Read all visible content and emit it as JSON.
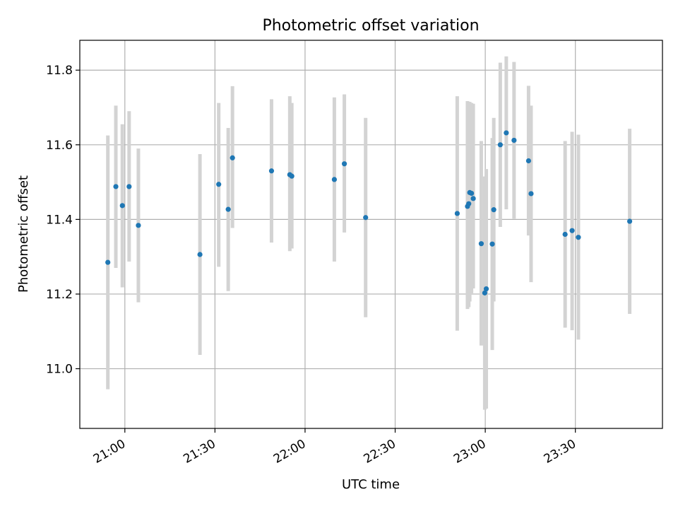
{
  "chart_data": {
    "type": "scatter",
    "title": "Photometric offset variation",
    "xlabel": "UTC time",
    "ylabel": "Photometric offset",
    "x_unit": "UTC time of day (HH:MM)",
    "xlim": [
      "20:45",
      "23:59"
    ],
    "ylim": [
      10.84,
      11.88
    ],
    "x_ticks": [
      "21:00",
      "21:30",
      "22:00",
      "22:30",
      "23:00",
      "23:30"
    ],
    "y_ticks": [
      11.0,
      11.2,
      11.4,
      11.6,
      11.8
    ],
    "grid": true,
    "legend": "none",
    "colors": {
      "point": "#1f77b4",
      "errorbar": "#d3d3d3",
      "grid": "#b0b0b0"
    },
    "points": [
      {
        "time": "20:54:20",
        "y": 11.285,
        "lo": 10.945,
        "hi": 11.625
      },
      {
        "time": "20:57:00",
        "y": 11.488,
        "lo": 11.27,
        "hi": 11.705
      },
      {
        "time": "20:59:10",
        "y": 11.437,
        "lo": 11.218,
        "hi": 11.655
      },
      {
        "time": "21:01:25",
        "y": 11.488,
        "lo": 11.287,
        "hi": 11.69
      },
      {
        "time": "21:04:30",
        "y": 11.384,
        "lo": 11.178,
        "hi": 11.59
      },
      {
        "time": "21:25:00",
        "y": 11.306,
        "lo": 11.037,
        "hi": 11.575
      },
      {
        "time": "21:31:15",
        "y": 11.494,
        "lo": 11.273,
        "hi": 11.712
      },
      {
        "time": "21:34:25",
        "y": 11.427,
        "lo": 11.208,
        "hi": 11.645
      },
      {
        "time": "21:35:50",
        "y": 11.565,
        "lo": 11.377,
        "hi": 11.757
      },
      {
        "time": "21:48:50",
        "y": 11.53,
        "lo": 11.338,
        "hi": 11.722
      },
      {
        "time": "21:54:55",
        "y": 11.52,
        "lo": 11.315,
        "hi": 11.73
      },
      {
        "time": "21:55:35",
        "y": 11.516,
        "lo": 11.322,
        "hi": 11.712
      },
      {
        "time": "22:09:45",
        "y": 11.507,
        "lo": 11.287,
        "hi": 11.727
      },
      {
        "time": "22:13:05",
        "y": 11.549,
        "lo": 11.365,
        "hi": 11.735
      },
      {
        "time": "22:20:10",
        "y": 11.405,
        "lo": 11.138,
        "hi": 11.672
      },
      {
        "time": "22:50:40",
        "y": 11.416,
        "lo": 11.102,
        "hi": 11.73
      },
      {
        "time": "22:54:05",
        "y": 11.435,
        "lo": 11.16,
        "hi": 11.717
      },
      {
        "time": "22:54:30",
        "y": 11.442,
        "lo": 11.165,
        "hi": 11.715
      },
      {
        "time": "22:54:50",
        "y": 11.472,
        "lo": 11.18,
        "hi": 11.715
      },
      {
        "time": "22:55:25",
        "y": 11.47,
        "lo": 11.198,
        "hi": 11.712
      },
      {
        "time": "22:56:00",
        "y": 11.456,
        "lo": 11.215,
        "hi": 11.71
      },
      {
        "time": "22:58:40",
        "y": 11.335,
        "lo": 11.062,
        "hi": 11.61
      },
      {
        "time": "22:59:50",
        "y": 11.203,
        "lo": 10.89,
        "hi": 11.515
      },
      {
        "time": "23:00:20",
        "y": 11.214,
        "lo": 10.893,
        "hi": 11.535
      },
      {
        "time": "23:02:20",
        "y": 11.334,
        "lo": 11.05,
        "hi": 11.618
      },
      {
        "time": "23:02:50",
        "y": 11.426,
        "lo": 11.18,
        "hi": 11.672
      },
      {
        "time": "23:05:00",
        "y": 11.6,
        "lo": 11.38,
        "hi": 11.82
      },
      {
        "time": "23:07:00",
        "y": 11.632,
        "lo": 11.427,
        "hi": 11.837
      },
      {
        "time": "23:09:35",
        "y": 11.612,
        "lo": 11.402,
        "hi": 11.822
      },
      {
        "time": "23:14:25",
        "y": 11.557,
        "lo": 11.357,
        "hi": 11.758
      },
      {
        "time": "23:15:15",
        "y": 11.469,
        "lo": 11.232,
        "hi": 11.705
      },
      {
        "time": "23:26:35",
        "y": 11.36,
        "lo": 11.11,
        "hi": 11.61
      },
      {
        "time": "23:28:55",
        "y": 11.37,
        "lo": 11.103,
        "hi": 11.635
      },
      {
        "time": "23:31:00",
        "y": 11.352,
        "lo": 11.078,
        "hi": 11.627
      },
      {
        "time": "23:48:05",
        "y": 11.395,
        "lo": 11.147,
        "hi": 11.643
      }
    ]
  }
}
